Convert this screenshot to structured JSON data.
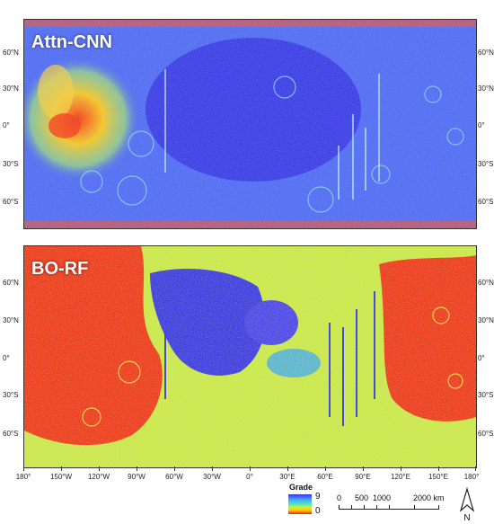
{
  "panels": [
    {
      "label": "Attn-CNN"
    },
    {
      "label": "BO-RF"
    }
  ],
  "lat_ticks": [
    "60°N",
    "30°N",
    "0°",
    "30°S",
    "60°S"
  ],
  "lon_ticks": [
    "180°",
    "150°W",
    "120°W",
    "90°W",
    "60°W",
    "30°W",
    "0°",
    "30°E",
    "60°E",
    "90°E",
    "120°E",
    "150°E",
    "180°"
  ],
  "legend": {
    "title": "Grade",
    "max": "9",
    "min": "0"
  },
  "scale": {
    "labels": [
      "0",
      "500",
      "1000",
      "2000 km"
    ]
  },
  "north": {
    "label": "N"
  },
  "colors": {
    "low_grade": "#ff1a00",
    "mid_low": "#ffd200",
    "mid": "#c8f040",
    "mid_high": "#3ee0d2",
    "high_grade": "#3b2df0"
  }
}
